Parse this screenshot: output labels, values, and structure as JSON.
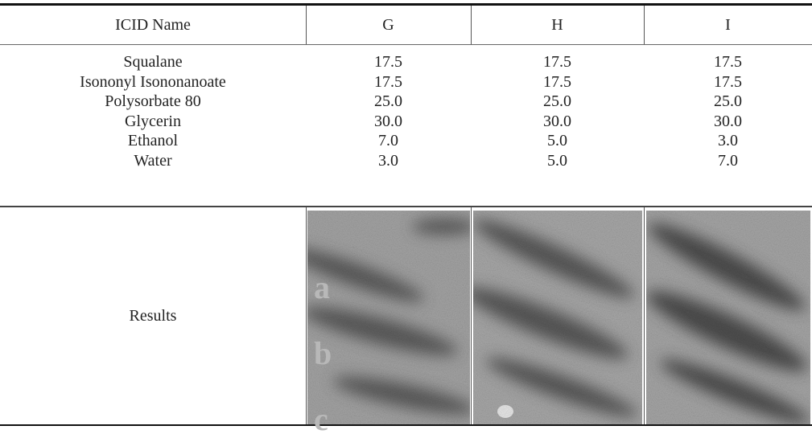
{
  "table": {
    "header": [
      "ICID Name",
      "G",
      "H",
      "I"
    ],
    "rows": [
      [
        "Squalane",
        "17.5",
        "17.5",
        "17.5"
      ],
      [
        "Isononyl Isononanoate",
        "17.5",
        "17.5",
        "17.5"
      ],
      [
        "Polysorbate 80",
        "25.0",
        "25.0",
        "25.0"
      ],
      [
        "Glycerin",
        "30.0",
        "30.0",
        "30.0"
      ],
      [
        "Ethanol",
        "7.0",
        "5.0",
        "3.0"
      ],
      [
        "Water",
        "3.0",
        "5.0",
        "7.0"
      ]
    ],
    "results": {
      "label": "Results",
      "image_labels": [
        "a",
        "b",
        "c"
      ]
    }
  }
}
